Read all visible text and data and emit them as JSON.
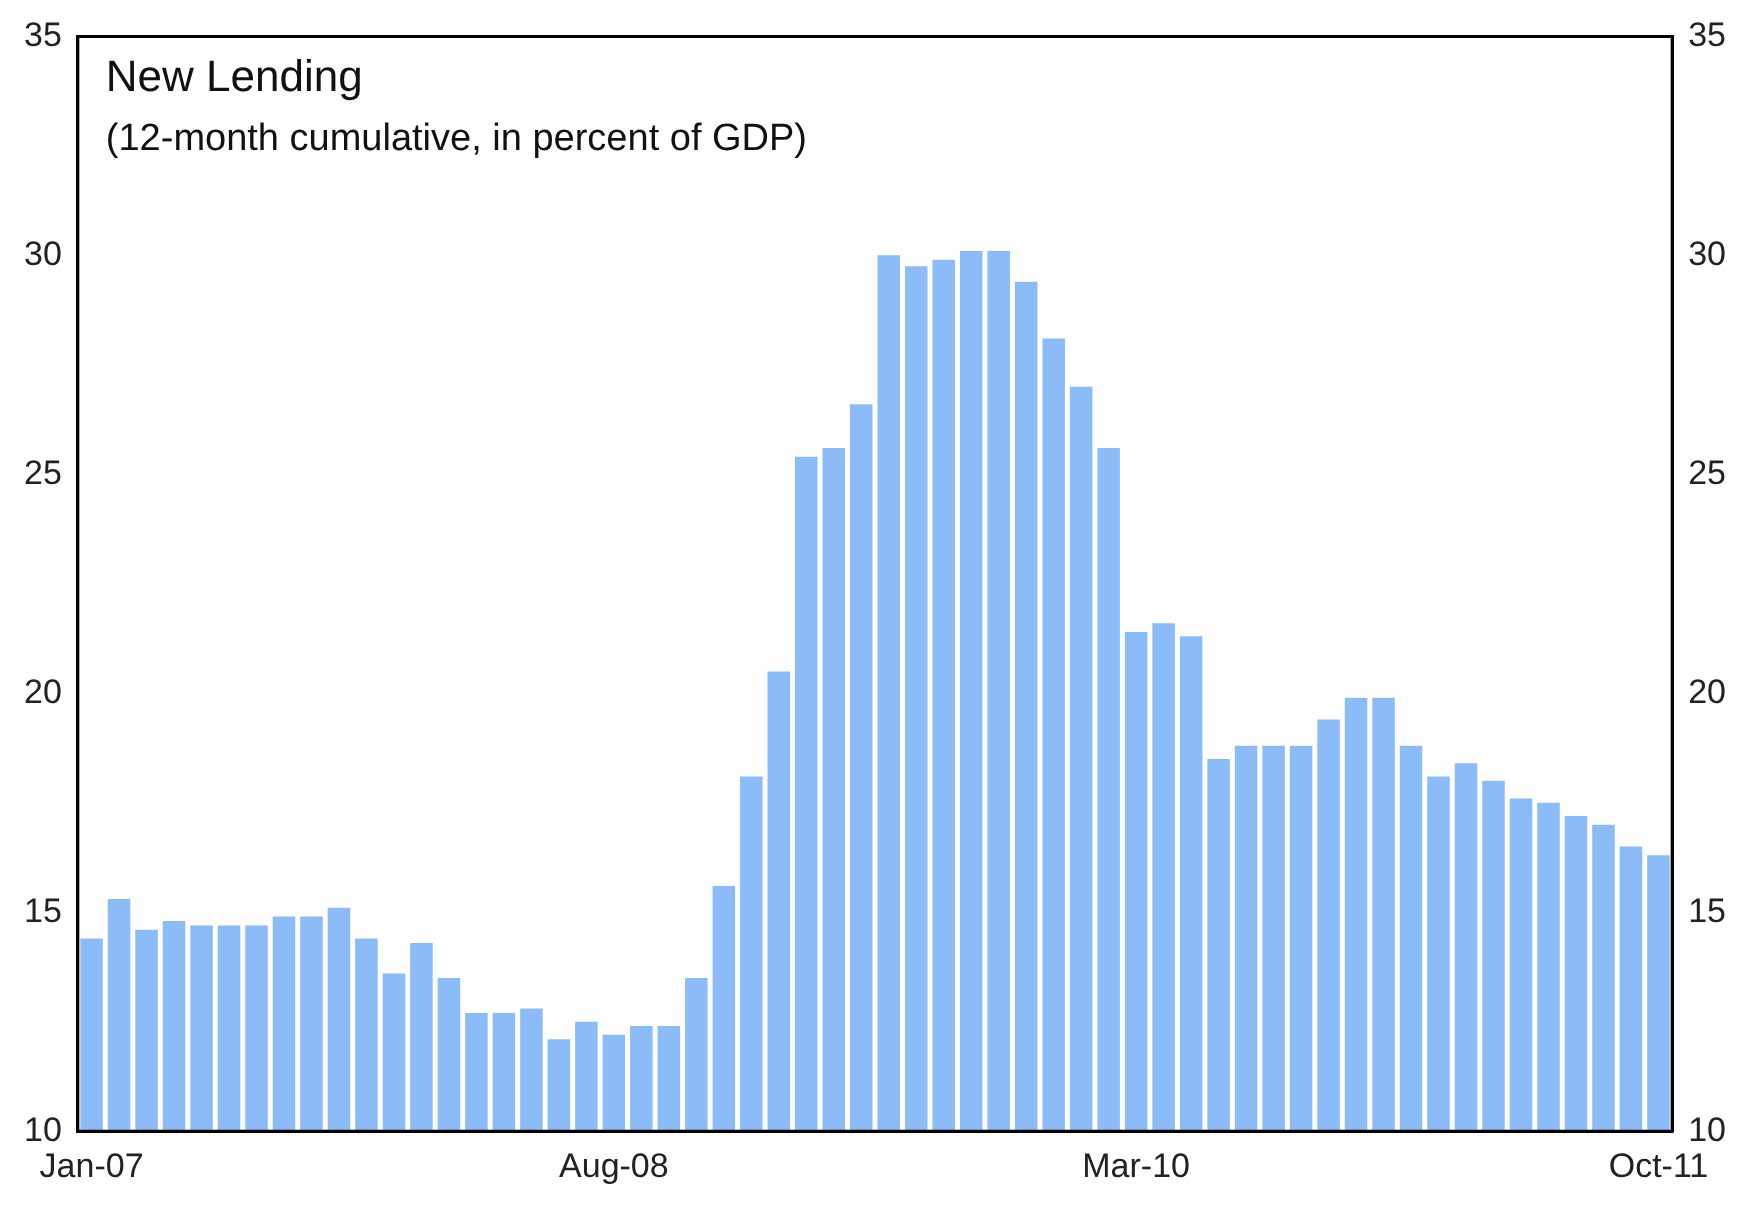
{
  "chart_data": {
    "type": "bar",
    "title": "New Lending",
    "subtitle": "(12-month cumulative, in percent of GDP)",
    "categories": [
      "Jan-07",
      null,
      null,
      null,
      null,
      null,
      null,
      null,
      null,
      null,
      null,
      null,
      null,
      null,
      null,
      null,
      null,
      null,
      null,
      "Aug-08",
      null,
      null,
      null,
      null,
      null,
      null,
      null,
      null,
      null,
      null,
      null,
      null,
      null,
      null,
      null,
      null,
      null,
      null,
      "Mar-10",
      null,
      null,
      null,
      null,
      null,
      null,
      null,
      null,
      null,
      null,
      null,
      null,
      null,
      null,
      null,
      null,
      null,
      null,
      "Oct-11"
    ],
    "values": [
      14.4,
      15.3,
      14.6,
      14.8,
      14.7,
      14.7,
      14.7,
      14.9,
      14.9,
      15.1,
      14.4,
      13.6,
      14.3,
      13.5,
      12.7,
      12.7,
      12.8,
      12.1,
      12.5,
      12.2,
      12.4,
      12.4,
      13.5,
      15.6,
      18.1,
      20.5,
      25.4,
      25.6,
      26.6,
      30.0,
      29.75,
      29.9,
      30.1,
      30.1,
      29.4,
      28.1,
      27.0,
      25.6,
      21.4,
      21.6,
      21.3,
      18.5,
      18.8,
      18.8,
      18.8,
      19.4,
      19.9,
      19.9,
      18.8,
      18.1,
      18.4,
      18.0,
      17.6,
      17.5,
      17.2,
      17.0,
      16.5,
      16.3
    ],
    "color": "#8cbcf8",
    "ylim": [
      10,
      35
    ],
    "yticks": [
      10,
      15,
      20,
      25,
      30,
      35
    ],
    "y2lim": [
      10,
      35
    ],
    "y2ticks": [
      10,
      15,
      20,
      25,
      30,
      35
    ],
    "grid": false,
    "legend": false
  }
}
